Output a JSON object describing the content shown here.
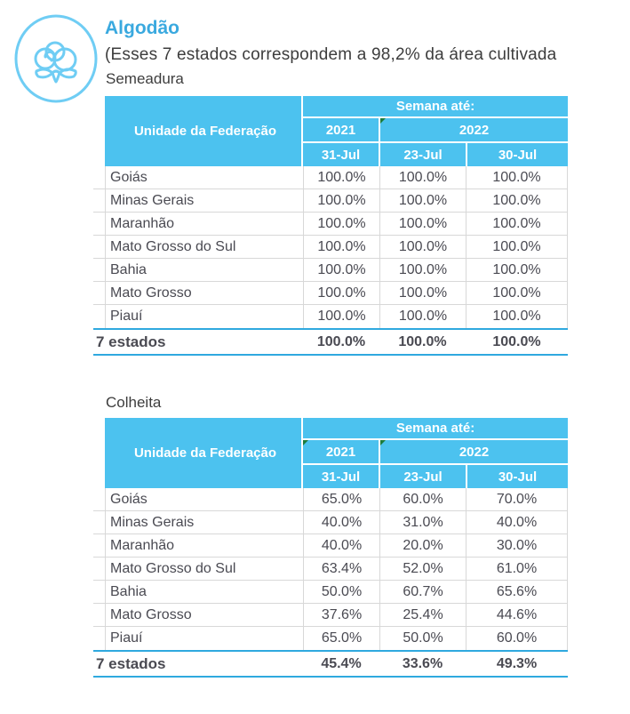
{
  "page": {
    "title": "Algodão",
    "subtitle": "(Esses 7 estados correspondem a 98,2% da área cultivada",
    "icon": "cotton-icon"
  },
  "colors": {
    "title_blue": "#3AA9DF",
    "header_blue": "#4CC2EF",
    "accent_line": "#2FA9DF",
    "body_text": "#4A4A52",
    "label_text": "#3D3D3D",
    "grid_line": "#D8D8D8",
    "flag_green": "#1C7C3C",
    "icon_blue": "#6FCDF4"
  },
  "header_labels": {
    "unit": "Unidade da Federação",
    "week_until": "Semana até:",
    "years": [
      "2021",
      "2022"
    ]
  },
  "tables": [
    {
      "label": "Semeadura",
      "columns": [
        "31-Jul",
        "23-Jul",
        "30-Jul"
      ],
      "year_flags": [
        false,
        true
      ],
      "rows": [
        {
          "state": "Goiás",
          "values": [
            "100.0%",
            "100.0%",
            "100.0%"
          ]
        },
        {
          "state": "Minas Gerais",
          "values": [
            "100.0%",
            "100.0%",
            "100.0%"
          ]
        },
        {
          "state": "Maranhão",
          "values": [
            "100.0%",
            "100.0%",
            "100.0%"
          ]
        },
        {
          "state": "Mato Grosso do Sul",
          "values": [
            "100.0%",
            "100.0%",
            "100.0%"
          ]
        },
        {
          "state": "Bahia",
          "values": [
            "100.0%",
            "100.0%",
            "100.0%"
          ]
        },
        {
          "state": "Mato Grosso",
          "values": [
            "100.0%",
            "100.0%",
            "100.0%"
          ]
        },
        {
          "state": "Piauí",
          "values": [
            "100.0%",
            "100.0%",
            "100.0%"
          ]
        }
      ],
      "total": {
        "label": "7 estados",
        "values": [
          "100.0%",
          "100.0%",
          "100.0%"
        ]
      }
    },
    {
      "label": "Colheita",
      "columns": [
        "31-Jul",
        "23-Jul",
        "30-Jul"
      ],
      "year_flags": [
        true,
        true
      ],
      "rows": [
        {
          "state": "Goiás",
          "values": [
            "65.0%",
            "60.0%",
            "70.0%"
          ]
        },
        {
          "state": "Minas Gerais",
          "values": [
            "40.0%",
            "31.0%",
            "40.0%"
          ]
        },
        {
          "state": "Maranhão",
          "values": [
            "40.0%",
            "20.0%",
            "30.0%"
          ]
        },
        {
          "state": "Mato Grosso do Sul",
          "values": [
            "63.4%",
            "52.0%",
            "61.0%"
          ]
        },
        {
          "state": "Bahia",
          "values": [
            "50.0%",
            "60.7%",
            "65.6%"
          ]
        },
        {
          "state": "Mato Grosso",
          "values": [
            "37.6%",
            "25.4%",
            "44.6%"
          ]
        },
        {
          "state": "Piauí",
          "values": [
            "65.0%",
            "50.0%",
            "60.0%"
          ]
        }
      ],
      "total": {
        "label": "7 estados",
        "values": [
          "45.4%",
          "33.6%",
          "49.3%"
        ]
      }
    }
  ]
}
